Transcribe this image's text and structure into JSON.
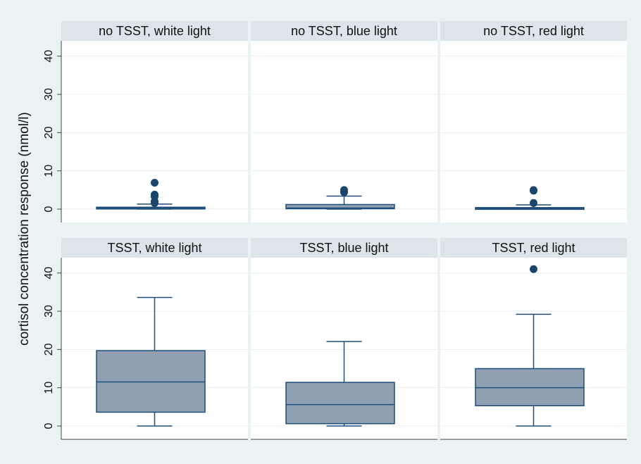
{
  "chart_data": {
    "type": "box",
    "ylabel": "cortisol concentration response (nmol/l)",
    "yticks": [
      0,
      10,
      20,
      30,
      40
    ],
    "ylim": [
      -3.5,
      44
    ],
    "grid": true,
    "colors": {
      "background": "#eaf2f3",
      "plot_background": "#ffffff",
      "strip": "#dbe5ea",
      "grid": "#e8eef1",
      "box_fill": "#8fa0b3",
      "box_line": "#1f4e79",
      "outlier": "#1a466e"
    },
    "panels": [
      {
        "title": "no TSST, white light",
        "min": 0,
        "q1": 0.1,
        "median": 0.3,
        "q3": 0.5,
        "max": 1.3,
        "outliers": [
          6.9,
          3.8,
          3.3,
          2.0,
          1.6
        ]
      },
      {
        "title": "no TSST, blue light",
        "min": 0,
        "q1": 0.1,
        "median": 0.3,
        "q3": 1.2,
        "max": 3.4,
        "outliers": [
          5.0,
          4.4
        ]
      },
      {
        "title": "no TSST, red light",
        "min": 0,
        "q1": 0.1,
        "median": 0.2,
        "q3": 0.4,
        "max": 1.1,
        "outliers": [
          5.0,
          4.8,
          1.6
        ]
      },
      {
        "title": "TSST, white light",
        "min": 0,
        "q1": 3.6,
        "median": 11.5,
        "q3": 19.7,
        "max": 33.6,
        "outliers": []
      },
      {
        "title": "TSST, blue light",
        "min": 0,
        "q1": 0.6,
        "median": 5.6,
        "q3": 11.4,
        "max": 22.1,
        "outliers": []
      },
      {
        "title": "TSST, red light",
        "min": 0,
        "q1": 5.3,
        "median": 10.0,
        "q3": 15.0,
        "max": 29.2,
        "outliers": [
          41.0
        ]
      }
    ]
  }
}
